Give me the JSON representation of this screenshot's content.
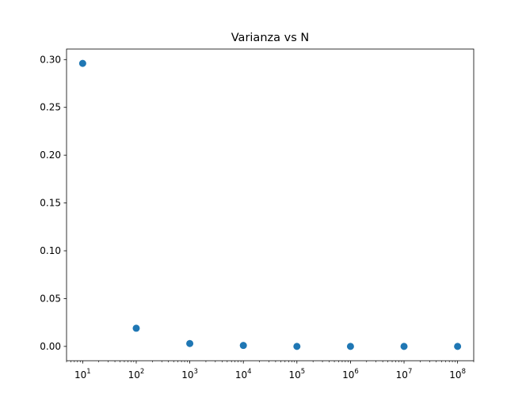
{
  "chart_data": {
    "type": "scatter",
    "title": "Varianza vs N",
    "xlabel": "",
    "ylabel": "",
    "x_scale": "log",
    "x": [
      10,
      100,
      1000,
      10000,
      100000,
      1000000,
      10000000,
      100000000
    ],
    "y": [
      0.296,
      0.019,
      0.003,
      0.001,
      0.0,
      0.0,
      0.0,
      0.0
    ],
    "xlim": [
      5,
      200000000
    ],
    "ylim": [
      -0.015,
      0.311
    ],
    "x_ticks": [
      {
        "base": "10",
        "exp": "1"
      },
      {
        "base": "10",
        "exp": "2"
      },
      {
        "base": "10",
        "exp": "3"
      },
      {
        "base": "10",
        "exp": "4"
      },
      {
        "base": "10",
        "exp": "5"
      },
      {
        "base": "10",
        "exp": "6"
      },
      {
        "base": "10",
        "exp": "7"
      },
      {
        "base": "10",
        "exp": "8"
      }
    ],
    "y_ticks": [
      "0.00",
      "0.05",
      "0.10",
      "0.15",
      "0.20",
      "0.25",
      "0.30"
    ],
    "grid": false,
    "marker_color": "#1f77b4"
  }
}
